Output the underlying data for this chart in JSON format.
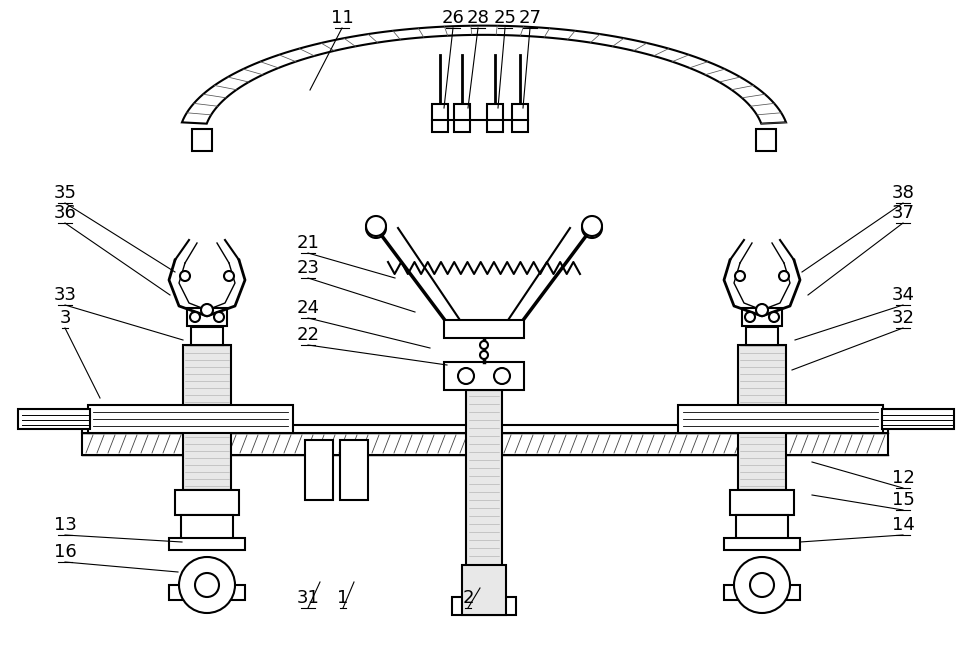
{
  "bg_color": "#ffffff",
  "line_color": "#000000",
  "figsize": [
    9.73,
    6.48
  ],
  "dpi": 100
}
